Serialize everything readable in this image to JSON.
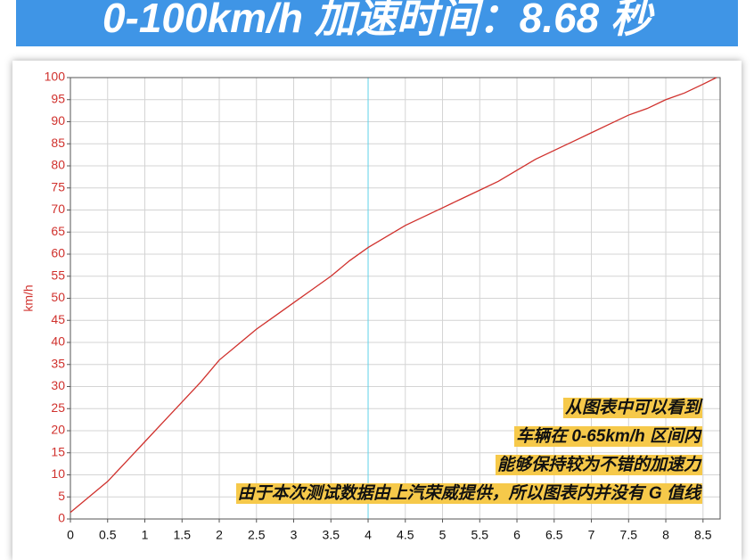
{
  "chart_data": {
    "type": "line",
    "title": "0-100km/h 加速时间：8.68 秒",
    "y_label": "km/h",
    "x": [
      0,
      0.25,
      0.5,
      0.75,
      1,
      1.25,
      1.5,
      1.75,
      2,
      2.25,
      2.5,
      2.75,
      3,
      3.25,
      3.5,
      3.75,
      4,
      4.25,
      4.5,
      4.75,
      5,
      5.25,
      5.5,
      5.75,
      6,
      6.25,
      6.5,
      6.75,
      7,
      7.25,
      7.5,
      7.75,
      8,
      8.25,
      8.5,
      8.68
    ],
    "values": [
      1.5,
      5,
      8.5,
      13,
      17.5,
      22,
      26.5,
      31,
      36,
      39.5,
      43,
      46,
      49,
      52,
      55,
      58.5,
      61.5,
      64,
      66.5,
      68.5,
      70.5,
      72.5,
      74.5,
      76.5,
      79,
      81.5,
      83.5,
      85.5,
      87.5,
      89.5,
      91.5,
      93,
      95,
      96.5,
      98.5,
      100
    ],
    "color": "#d0312d",
    "xlim": [
      0,
      8.73
    ],
    "ylim": [
      0,
      100
    ],
    "xticks": [
      0,
      0.5,
      1,
      1.5,
      2,
      2.5,
      3,
      3.5,
      4,
      4.5,
      5,
      5.5,
      6,
      6.5,
      7,
      7.5,
      8,
      8.5
    ],
    "yticks": [
      0,
      5,
      10,
      15,
      20,
      25,
      30,
      35,
      40,
      45,
      50,
      55,
      60,
      65,
      70,
      75,
      80,
      85,
      90,
      95,
      100
    ],
    "grid": true,
    "reference_line": {
      "x": 4,
      "color": "#5fd3ea"
    },
    "annotations": [
      "从图表中可以看到",
      "车辆在 0-65km/h 区间内",
      "能够保持较为不错的加速力",
      "由于本次测试数据由上汽荣威提供，所以图表内并没有 G 值线"
    ]
  }
}
